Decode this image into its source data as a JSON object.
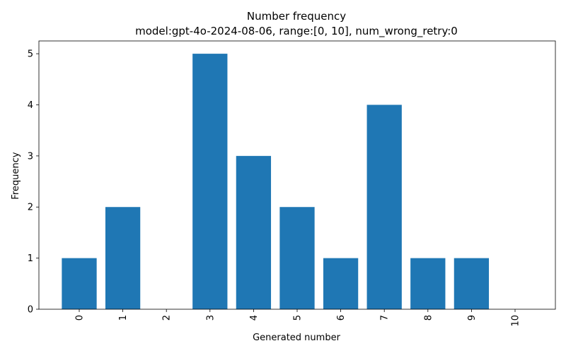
{
  "chart_data": {
    "type": "bar",
    "title": "Number frequency",
    "subtitle": "model:gpt-4o-2024-08-06, range:[0, 10], num_wrong_retry:0",
    "x_label": "Generated number",
    "y_label": "Frequency",
    "categories": [
      "0",
      "1",
      "2",
      "3",
      "4",
      "5",
      "6",
      "7",
      "8",
      "9",
      "10"
    ],
    "values": [
      1,
      2,
      0,
      5,
      3,
      2,
      1,
      4,
      1,
      1,
      0
    ],
    "color": "#1f77b4",
    "ylim": [
      0,
      5.25
    ],
    "yticks": [
      0,
      1,
      2,
      3,
      4,
      5
    ],
    "grid": false
  }
}
